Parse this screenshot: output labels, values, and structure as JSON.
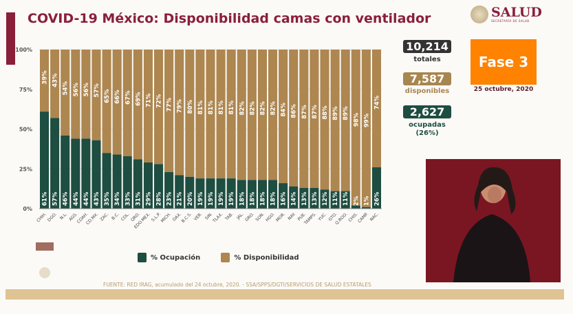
{
  "header": {
    "title": "COVID-19 México: Disponibilidad camas con ventilador",
    "logo_text": "SALUD",
    "logo_subtext": "SECRETARÍA DE SALUD"
  },
  "stats": {
    "totales": {
      "value": "10,214",
      "label": "totales",
      "color": "#333333"
    },
    "disponibles": {
      "value": "7,587",
      "label": "disponibles",
      "color": "#a8864f"
    },
    "ocupadas": {
      "value": "2,627",
      "label": "ocupadas",
      "sublabel": "(26%)",
      "color": "#1e4d41"
    }
  },
  "phase": {
    "label": "Fase 3",
    "date": "25 octubre, 2020",
    "color": "#ff8200"
  },
  "legend": {
    "ocupacion": "% Ocupación",
    "disponibilidad": "% Disponibilidad"
  },
  "source": "FUENTE: RED IRAG, acumulado del 24 octubre, 2020. -  SSA/SPPS/DGTI/SERVICIOS DE SALUD ESTATALES",
  "chart_data": {
    "type": "bar",
    "stacked": true,
    "ylim": [
      0,
      100
    ],
    "yticks": [
      "0%",
      "25%",
      "50%",
      "75%",
      "100%"
    ],
    "grid": true,
    "legend_position": "bottom",
    "categories": [
      "CHIH.",
      "DGO.",
      "N.L.",
      "AGS.",
      "COAH.",
      "CD.MX.",
      "ZAC.",
      "B.C.",
      "COL.",
      "QRO.",
      "EDO.MEX.",
      "S.L.P.",
      "MICH.",
      "OAX.",
      "B.C.S.",
      "VER.",
      "SIN.",
      "TLAX.",
      "TAB.",
      "JAL.",
      "GRO.",
      "SON.",
      "HGO.",
      "MOR.",
      "NAY.",
      "PUE.",
      "TAMPS.",
      "YUC.",
      "GTO.",
      "Q.ROO.",
      "CHIS.",
      "CAMP.",
      "NAC."
    ],
    "series": [
      {
        "name": "% Ocupación",
        "color": "#1e4d41",
        "values": [
          61,
          57,
          46,
          44,
          44,
          43,
          35,
          34,
          33,
          31,
          29,
          28,
          23,
          21,
          20,
          19,
          19,
          19,
          19,
          18,
          18,
          18,
          18,
          16,
          14,
          13,
          13,
          12,
          11,
          11,
          2,
          1,
          26
        ]
      },
      {
        "name": "% Disponibilidad",
        "color": "#ad8650",
        "values": [
          39,
          43,
          54,
          56,
          56,
          57,
          65,
          66,
          67,
          69,
          71,
          72,
          77,
          79,
          80,
          81,
          81,
          81,
          81,
          82,
          82,
          82,
          82,
          84,
          86,
          87,
          87,
          88,
          89,
          89,
          98,
          99,
          74
        ]
      }
    ]
  }
}
